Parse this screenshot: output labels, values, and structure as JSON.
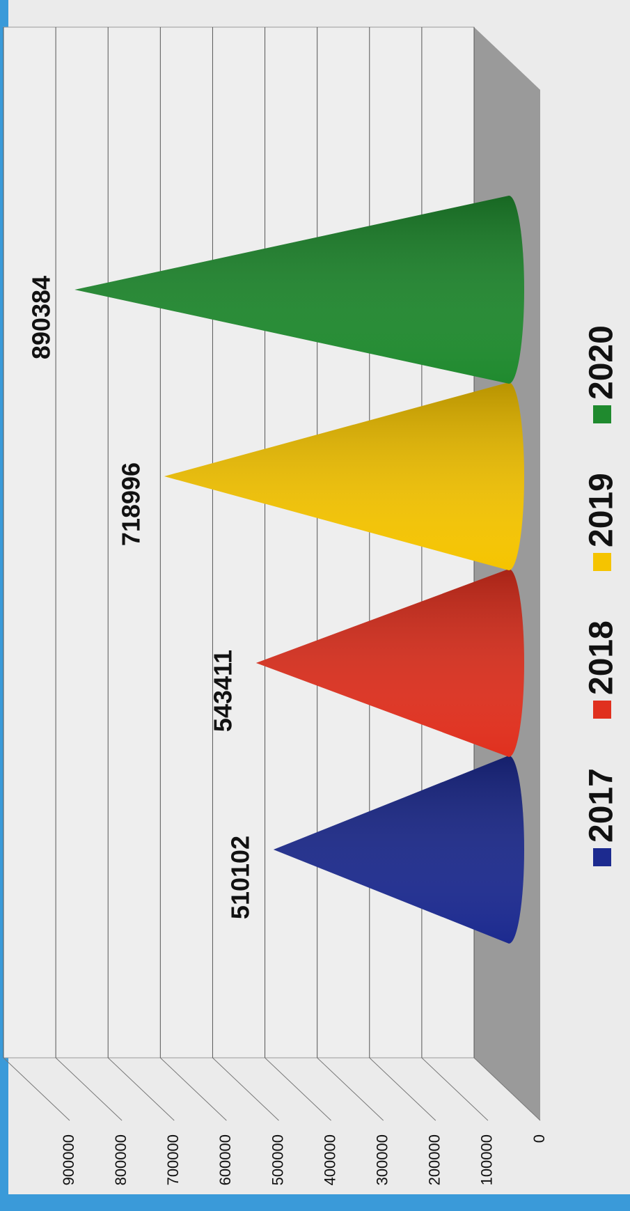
{
  "chart_data": {
    "type": "cone",
    "series": [
      {
        "name": "2017",
        "color": "#1c2a8f",
        "values": [
          510102
        ]
      },
      {
        "name": "2018",
        "color": "#e0301e",
        "values": [
          543411
        ]
      },
      {
        "name": "2019",
        "color": "#f5c400",
        "values": [
          718996
        ]
      },
      {
        "name": "2020",
        "color": "#1f8a2e",
        "values": [
          890384
        ]
      }
    ],
    "ylim": [
      0,
      900000
    ],
    "yticks": [
      0,
      100000,
      200000,
      300000,
      400000,
      500000,
      600000,
      700000,
      800000,
      900000
    ],
    "grid": true
  }
}
